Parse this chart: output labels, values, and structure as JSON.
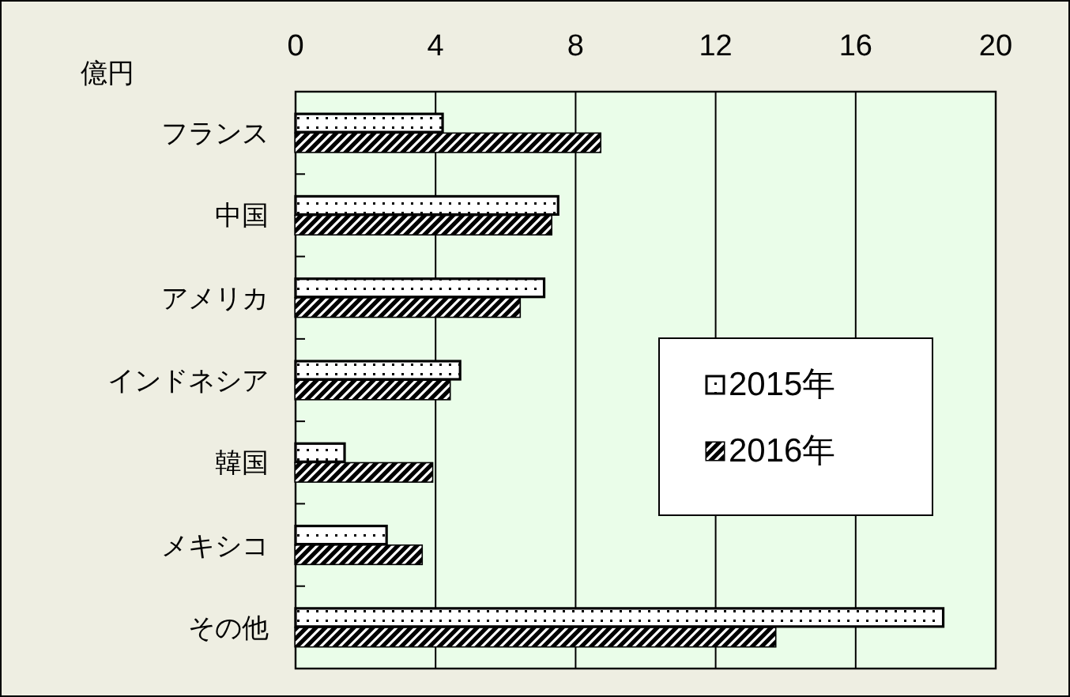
{
  "chart_data": {
    "type": "bar",
    "orientation": "horizontal",
    "xlabel": "億円",
    "categories": [
      "フランス",
      "中国",
      "アメリカ",
      "インドネシア",
      "韓国",
      "メキシコ",
      "その他"
    ],
    "series": [
      {
        "name": "2015年",
        "color": "#ffffff",
        "values": [
          4.2,
          7.5,
          7.1,
          4.7,
          1.4,
          2.6,
          18.5
        ]
      },
      {
        "name": "2016年",
        "color": "#000000",
        "values": [
          8.7,
          7.3,
          6.4,
          4.4,
          3.9,
          3.6,
          13.7
        ]
      }
    ],
    "xlim": [
      0,
      20
    ],
    "xticks": [
      0,
      4,
      8,
      12,
      16,
      20
    ],
    "grid": "x",
    "legend": "right"
  }
}
